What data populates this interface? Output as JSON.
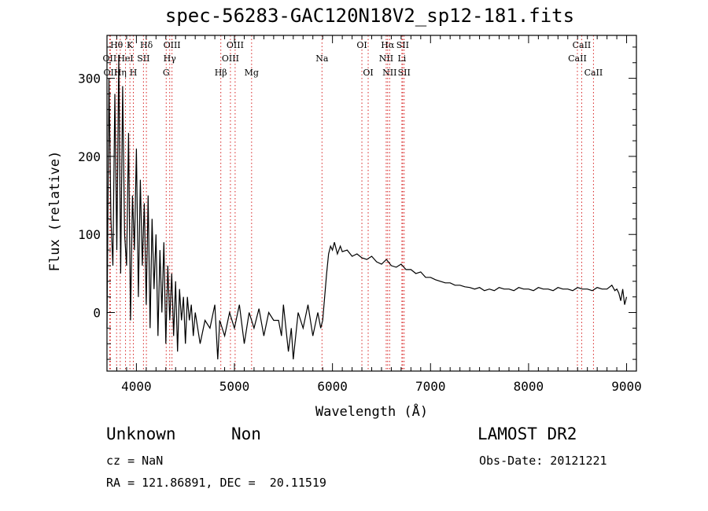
{
  "chart_data": {
    "type": "line",
    "title": "spec-56283-GAC120N18V2_sp12-181.fits",
    "xlabel": "Wavelength (Å)",
    "ylabel": "Flux (relative)",
    "xlim": [
      3700,
      9100
    ],
    "ylim": [
      -75,
      355
    ],
    "xticks": [
      4000,
      5000,
      6000,
      7000,
      8000,
      9000
    ],
    "yticks": [
      0,
      100,
      200,
      300
    ],
    "grid": false,
    "series": [
      {
        "x": [
          3700,
          3720,
          3740,
          3760,
          3780,
          3800,
          3820,
          3840,
          3860,
          3880,
          3900,
          3920,
          3940,
          3960,
          3980,
          4000,
          4020,
          4040,
          4060,
          4080,
          4100,
          4120,
          4140,
          4160,
          4180,
          4200,
          4220,
          4240,
          4260,
          4280,
          4300,
          4320,
          4340,
          4360,
          4380,
          4400,
          4420,
          4440,
          4460,
          4480,
          4500,
          4520,
          4540,
          4560,
          4580,
          4600,
          4650,
          4700,
          4750,
          4800,
          4830,
          4850,
          4900,
          4950,
          5000,
          5050,
          5100,
          5150,
          5200,
          5250,
          5300,
          5350,
          5400,
          5450,
          5480,
          5500,
          5550,
          5580,
          5600,
          5650,
          5700,
          5750,
          5800,
          5850,
          5880,
          5900,
          5920,
          5940,
          5960,
          5980,
          6000,
          6020,
          6050,
          6080,
          6100,
          6150,
          6200,
          6250,
          6300,
          6350,
          6400,
          6450,
          6500,
          6550,
          6600,
          6650,
          6700,
          6750,
          6800,
          6850,
          6900,
          6950,
          7000,
          7050,
          7100,
          7150,
          7200,
          7250,
          7300,
          7350,
          7400,
          7450,
          7500,
          7550,
          7600,
          7650,
          7700,
          7750,
          7800,
          7850,
          7900,
          7950,
          8000,
          8050,
          8100,
          8150,
          8200,
          8250,
          8300,
          8350,
          8400,
          8450,
          8500,
          8550,
          8600,
          8650,
          8700,
          8750,
          8800,
          8850,
          8880,
          8900,
          8920,
          8940,
          8960,
          8980,
          9000
        ],
        "y": [
          -20,
          300,
          120,
          60,
          280,
          80,
          330,
          50,
          290,
          100,
          60,
          230,
          -10,
          150,
          80,
          210,
          20,
          170,
          60,
          140,
          10,
          150,
          -20,
          120,
          30,
          100,
          -30,
          80,
          0,
          90,
          -40,
          60,
          -10,
          50,
          -30,
          40,
          -50,
          30,
          -10,
          20,
          -40,
          20,
          -10,
          10,
          -30,
          0,
          -40,
          -10,
          -20,
          10,
          -60,
          -10,
          -30,
          0,
          -20,
          10,
          -40,
          0,
          -20,
          5,
          -30,
          0,
          -10,
          -10,
          -30,
          10,
          -50,
          -20,
          -60,
          0,
          -20,
          10,
          -30,
          0,
          -20,
          -10,
          20,
          50,
          75,
          85,
          80,
          90,
          75,
          85,
          78,
          80,
          72,
          75,
          70,
          68,
          72,
          65,
          62,
          68,
          60,
          58,
          62,
          55,
          55,
          50,
          52,
          45,
          45,
          42,
          40,
          38,
          38,
          35,
          35,
          33,
          32,
          30,
          32,
          28,
          30,
          28,
          32,
          30,
          30,
          28,
          32,
          30,
          30,
          28,
          32,
          30,
          30,
          28,
          32,
          30,
          30,
          28,
          32,
          30,
          30,
          28,
          32,
          30,
          30,
          35,
          28,
          30,
          25,
          15,
          30,
          10,
          20
        ]
      }
    ],
    "lines": [
      {
        "name": "OII",
        "x": 3727,
        "row": 2
      },
      {
        "name": "OII",
        "x": 3735,
        "row": 3
      },
      {
        "name": "Hθ",
        "x": 3798,
        "row": 1
      },
      {
        "name": "Hη",
        "x": 3835,
        "row": 3
      },
      {
        "name": "HeI",
        "x": 3889,
        "row": 2
      },
      {
        "name": "K",
        "x": 3934,
        "row": 1
      },
      {
        "name": "H",
        "x": 3969,
        "row": 3
      },
      {
        "name": "SII",
        "x": 4072,
        "row": 2
      },
      {
        "name": "Hδ",
        "x": 4102,
        "row": 1
      },
      {
        "name": "OIII",
        "x": 4363,
        "row": 1
      },
      {
        "name": "Hγ",
        "x": 4340,
        "row": 2
      },
      {
        "name": "G",
        "x": 4304,
        "row": 3
      },
      {
        "name": "Hβ",
        "x": 4861,
        "row": 3
      },
      {
        "name": "OIII",
        "x": 4959,
        "row": 2
      },
      {
        "name": "OIII",
        "x": 5007,
        "row": 1
      },
      {
        "name": "Mg",
        "x": 5175,
        "row": 3
      },
      {
        "name": "Na",
        "x": 5893,
        "row": 2
      },
      {
        "name": "OI",
        "x": 6300,
        "row": 1
      },
      {
        "name": "OI",
        "x": 6364,
        "row": 3
      },
      {
        "name": "NII",
        "x": 6548,
        "row": 2
      },
      {
        "name": "Hα",
        "x": 6563,
        "row": 1
      },
      {
        "name": "NII",
        "x": 6583,
        "row": 3
      },
      {
        "name": "Li",
        "x": 6708,
        "row": 2
      },
      {
        "name": "SII",
        "x": 6716,
        "row": 1
      },
      {
        "name": "SII",
        "x": 6731,
        "row": 3
      },
      {
        "name": "CaII",
        "x": 8498,
        "row": 2
      },
      {
        "name": "CaII",
        "x": 8542,
        "row": 1
      },
      {
        "name": "CaII",
        "x": 8662,
        "row": 3
      }
    ]
  },
  "info": {
    "class": "Unknown",
    "subclass": "Non",
    "survey": "LAMOST DR2",
    "cz": "cz = NaN",
    "obs_date": "Obs-Date: 20121221",
    "coords": "RA = 121.86891, DEC =  20.11519"
  },
  "colors": {
    "line_marker": "#d62020",
    "spectrum": "#000000"
  }
}
